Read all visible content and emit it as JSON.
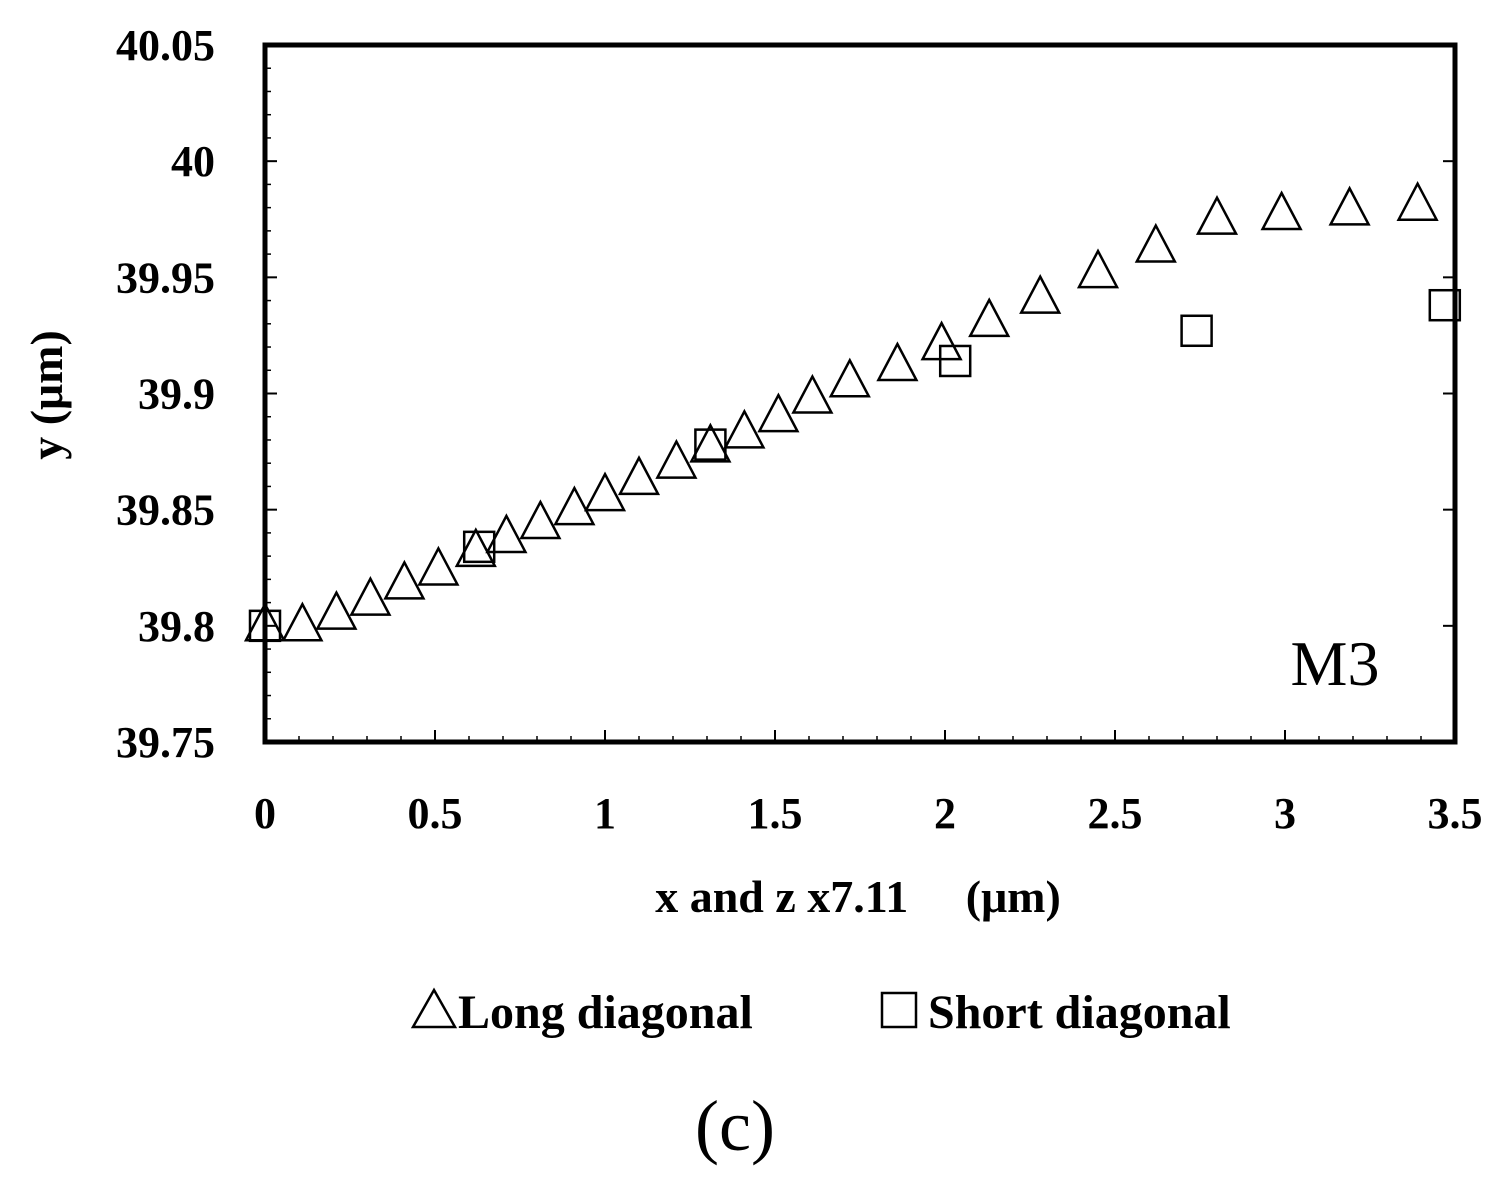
{
  "chart_data": {
    "type": "scatter",
    "xlabel": "x and z x7.11     (μm)",
    "ylabel": "y (μm)",
    "xlim": [
      0,
      3.5
    ],
    "ylim": [
      39.75,
      40.05
    ],
    "xticks": [
      0,
      0.5,
      1,
      1.5,
      2,
      2.5,
      3,
      3.5
    ],
    "xtick_labels": [
      "0",
      "0.5",
      "1",
      "1.5",
      "2",
      "2.5",
      "3",
      "3.5"
    ],
    "yticks": [
      39.75,
      39.8,
      39.85,
      39.9,
      39.95,
      40,
      40.05
    ],
    "ytick_labels": [
      "39.75",
      "39.8",
      "39.85",
      "39.9",
      "39.95",
      "40",
      "40.05"
    ],
    "grid": false,
    "annotation": "M3",
    "legend_position": "bottom",
    "panel_label": "(c)",
    "series": [
      {
        "name": "Long diagonal",
        "marker": "triangle",
        "legend_label": "Long diagonal",
        "x": [
          0,
          0.11,
          0.21,
          0.31,
          0.41,
          0.51,
          0.62,
          0.71,
          0.81,
          0.91,
          1.0,
          1.1,
          1.21,
          1.31,
          1.41,
          1.51,
          1.61,
          1.72,
          1.86,
          1.99,
          2.13,
          2.28,
          2.45,
          2.62,
          2.8,
          2.99,
          3.19,
          3.39
        ],
        "y": [
          39.8,
          39.8,
          39.805,
          39.811,
          39.818,
          39.824,
          39.832,
          39.838,
          39.844,
          39.85,
          39.856,
          39.863,
          39.87,
          39.877,
          39.883,
          39.89,
          39.898,
          39.905,
          39.912,
          39.921,
          39.931,
          39.941,
          39.952,
          39.963,
          39.975,
          39.977,
          39.979,
          39.981
        ]
      },
      {
        "name": "Short diagonal",
        "marker": "square",
        "legend_label": "Short diagonal",
        "x": [
          0,
          0.63,
          1.31,
          2.03,
          2.74,
          3.47
        ],
        "y": [
          39.8,
          39.834,
          39.878,
          39.914,
          39.927,
          39.938
        ]
      }
    ]
  }
}
